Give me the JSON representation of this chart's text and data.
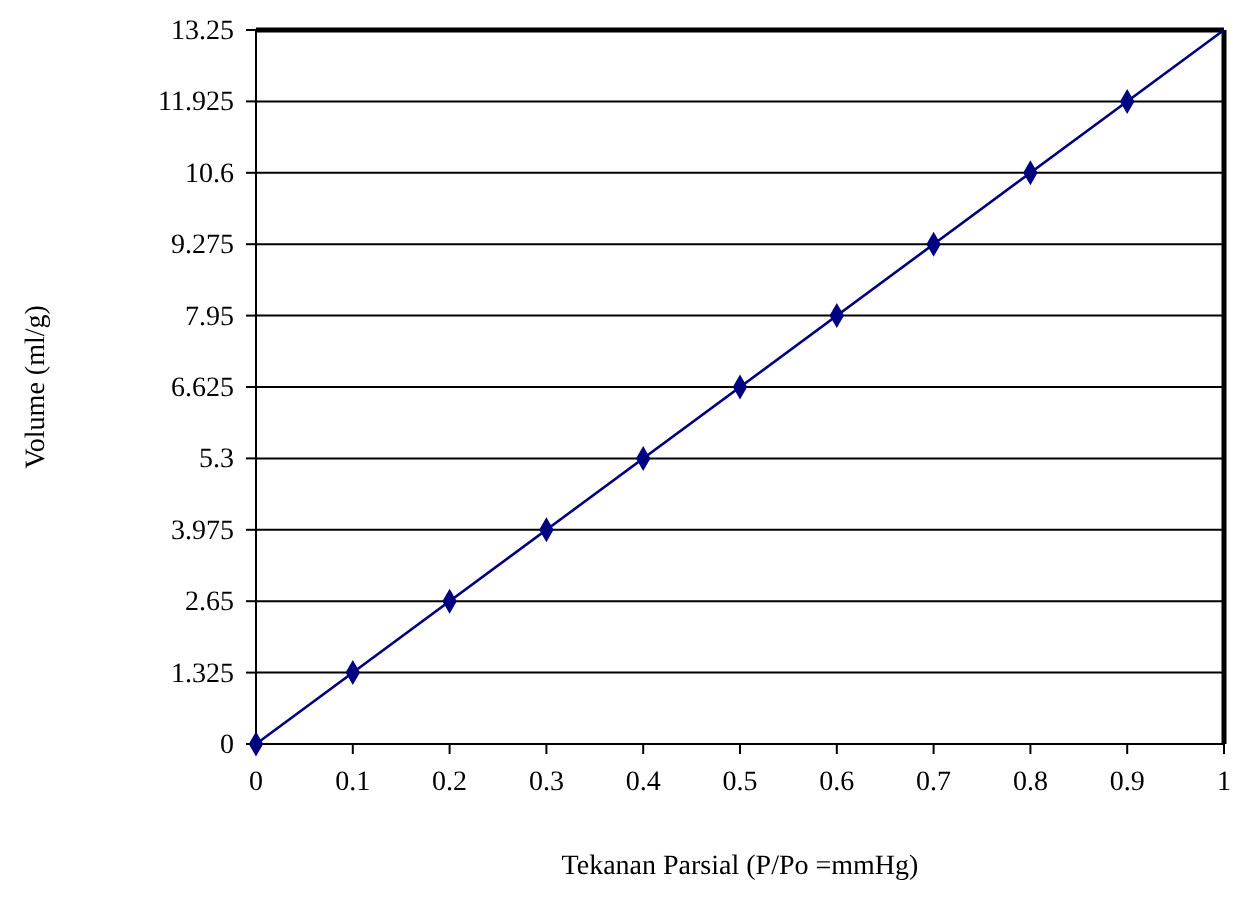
{
  "chart_data": {
    "type": "scatter",
    "xlabel": "Tekanan Parsial (P/Po =mmHg)",
    "ylabel": "Volume (ml/g)",
    "xlim": [
      0,
      1
    ],
    "xticks": [
      0,
      0.1,
      0.2,
      0.3,
      0.4,
      0.5,
      0.6,
      0.7,
      0.8,
      0.9,
      1
    ],
    "ylim": [
      0,
      13.25
    ],
    "yticks": [
      0,
      1.325,
      2.65,
      3.975,
      5.3,
      6.625,
      7.95,
      9.275,
      10.6,
      11.925,
      13.25
    ],
    "grid": "y",
    "series": [
      {
        "type": "scatter",
        "marker": "diamond",
        "color": "#000080",
        "x": [
          0,
          0.1,
          0.2,
          0.3,
          0.4,
          0.5,
          0.6,
          0.7,
          0.8,
          0.9
        ],
        "values": [
          0,
          1.325,
          2.65,
          3.975,
          5.3,
          6.625,
          7.95,
          9.275,
          10.6,
          11.925
        ]
      },
      {
        "type": "line",
        "color": "#000080",
        "x": [
          0,
          1
        ],
        "values": [
          0,
          13.25
        ]
      }
    ]
  }
}
